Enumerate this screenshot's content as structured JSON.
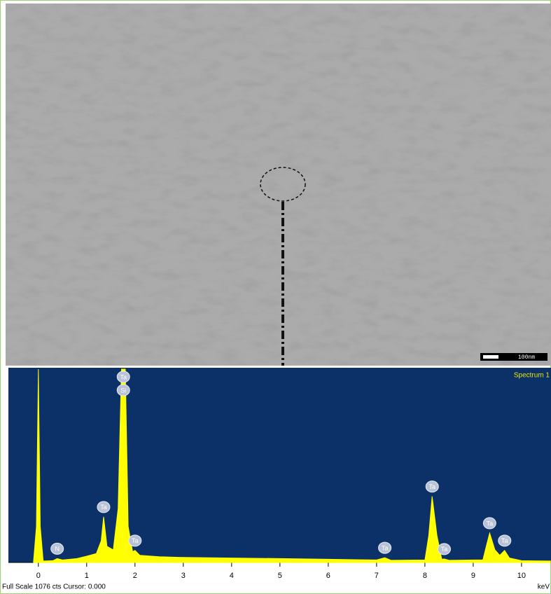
{
  "sem_image": {
    "scale_bar": "100nm"
  },
  "chart_data": {
    "type": "area",
    "title": "Spectrum 1",
    "footer": "Full Scale 1076 cts Cursor: 0.000",
    "x_label": "keV",
    "color": "#ffff00",
    "background": "#0b3168",
    "xlim": [
      -0.62,
      10.61
    ],
    "ylim": [
      0,
      1076
    ],
    "xticks": [
      0,
      1,
      2,
      3,
      4,
      5,
      6,
      7,
      8,
      9,
      10
    ],
    "x": [
      -0.1,
      -0.04,
      0,
      0.04,
      0.1,
      0.3,
      0.39,
      0.5,
      0.8,
      1.0,
      1.2,
      1.3,
      1.35,
      1.42,
      1.55,
      1.65,
      1.72,
      1.8,
      1.86,
      1.95,
      2.0,
      2.1,
      2.5,
      3.0,
      4.0,
      5.0,
      6.0,
      7.0,
      7.17,
      7.3,
      8.0,
      8.08,
      8.15,
      8.25,
      8.35,
      8.4,
      8.5,
      9.2,
      9.28,
      9.34,
      9.45,
      9.55,
      9.65,
      9.75,
      10.0,
      10.6
    ],
    "values": [
      5,
      200,
      1076,
      200,
      8,
      10,
      22,
      14,
      22,
      35,
      50,
      120,
      254,
      90,
      70,
      300,
      1076,
      1076,
      200,
      60,
      67,
      40,
      32,
      28,
      25,
      22,
      18,
      14,
      27,
      12,
      14,
      150,
      368,
      150,
      18,
      20,
      12,
      15,
      100,
      164,
      70,
      40,
      67,
      25,
      10,
      8
    ],
    "peak_labels": [
      {
        "label": "N",
        "x": 0.39
      },
      {
        "label": "Ta",
        "x": 1.35
      },
      {
        "label": "Ta",
        "x": 1.76
      },
      {
        "label": "Si",
        "x": 1.76
      },
      {
        "label": "Ta",
        "x": 2.0
      },
      {
        "label": "Ta",
        "x": 7.17
      },
      {
        "label": "Ta",
        "x": 8.15
      },
      {
        "label": "Ta",
        "x": 8.4
      },
      {
        "label": "Ta",
        "x": 9.34
      },
      {
        "label": "Ta",
        "x": 9.65
      }
    ]
  }
}
